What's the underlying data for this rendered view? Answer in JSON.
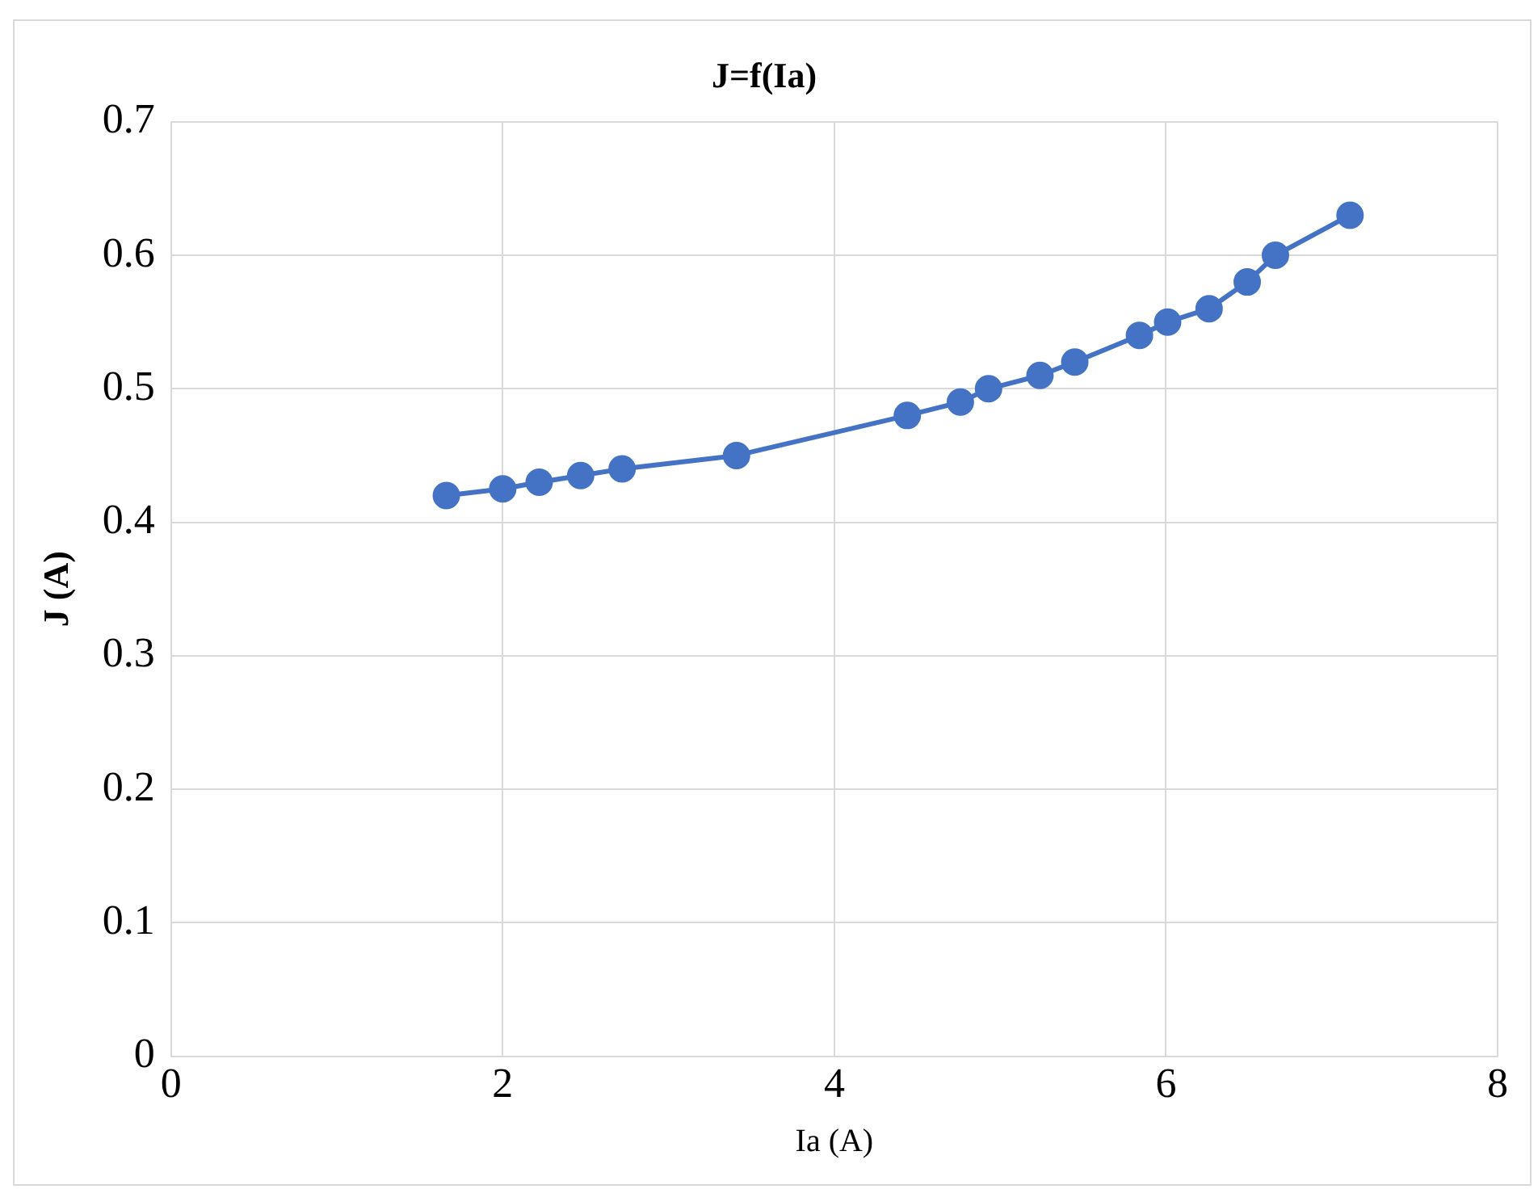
{
  "chart_data": {
    "type": "line",
    "title": "J=f(Ia)",
    "xlabel": "Ia (A)",
    "ylabel": "J (A)",
    "x": [
      1.66,
      2.0,
      2.22,
      2.47,
      2.72,
      3.41,
      4.44,
      4.76,
      4.93,
      5.24,
      5.45,
      5.84,
      6.01,
      6.26,
      6.49,
      6.66,
      7.11
    ],
    "series": [
      {
        "color": "#4472c4",
        "values": [
          0.42,
          0.425,
          0.43,
          0.435,
          0.44,
          0.45,
          0.48,
          0.49,
          0.5,
          0.51,
          0.52,
          0.54,
          0.55,
          0.56,
          0.58,
          0.6,
          0.63
        ]
      }
    ],
    "xlim": [
      0,
      8
    ],
    "xticks": [
      0,
      2,
      4,
      6,
      8
    ],
    "ylim": [
      0,
      0.7
    ],
    "yticks": [
      0,
      0.1,
      0.2,
      0.3,
      0.4,
      0.5,
      0.6,
      0.7
    ],
    "grid": true,
    "legend": false,
    "marker": "circle",
    "line_style": "solid"
  }
}
